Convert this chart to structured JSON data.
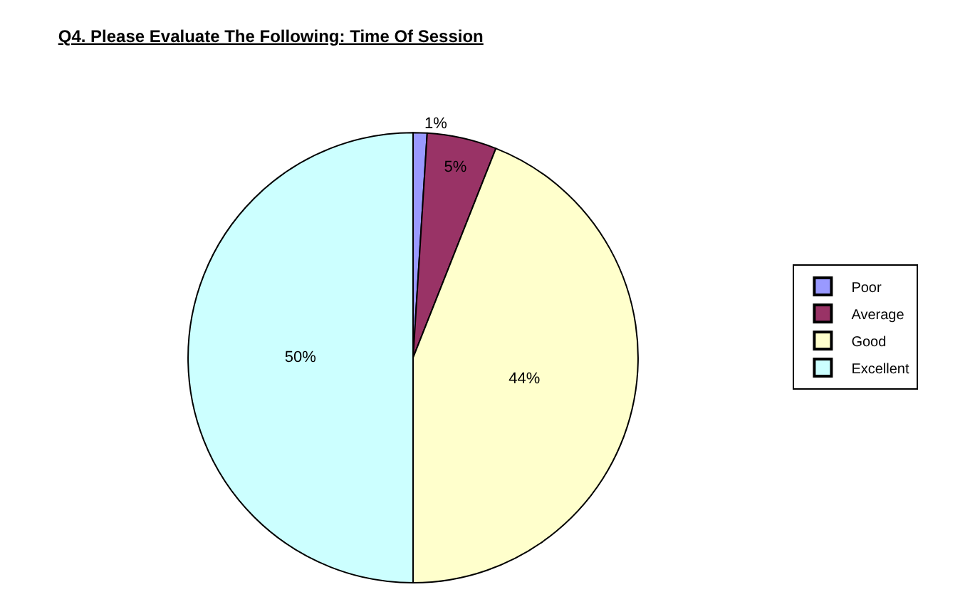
{
  "chart_data": {
    "type": "pie",
    "title": "Q4. Please Evaluate The Following: Time Of Session",
    "categories": [
      "Poor",
      "Average",
      "Good",
      "Excellent"
    ],
    "values": [
      1,
      5,
      44,
      50
    ],
    "colors": [
      "#9999ff",
      "#993366",
      "#ffffcc",
      "#ccffff"
    ],
    "value_labels": [
      "1%",
      "5%",
      "44%",
      "50%"
    ],
    "legend": "right"
  }
}
